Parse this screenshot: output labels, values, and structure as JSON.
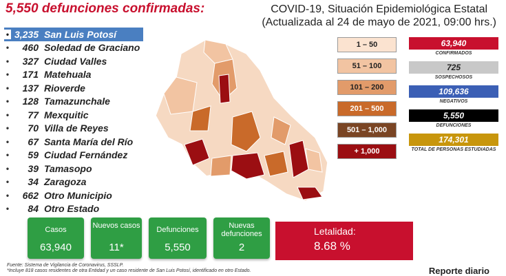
{
  "header": {
    "deaths_title": "5,550 defunciones confirmadas:",
    "title_line1": "COVID-19, Situación Epidemiológica Estatal",
    "title_line2": "(Actualizada al 24 de mayo de 2021, 09:00 hrs.)"
  },
  "municipalities": [
    {
      "value": "3,235",
      "name": "San Luis Potosí"
    },
    {
      "value": "460",
      "name": "Soledad de Graciano"
    },
    {
      "value": "327",
      "name": "Ciudad Valles"
    },
    {
      "value": "171",
      "name": "Matehuala"
    },
    {
      "value": "137",
      "name": "Rioverde"
    },
    {
      "value": "128",
      "name": "Tamazunchale"
    },
    {
      "value": "77",
      "name": "Mexquitic"
    },
    {
      "value": "70",
      "name": "Villa de Reyes"
    },
    {
      "value": "67",
      "name": "Santa María del Río"
    },
    {
      "value": "59",
      "name": "Ciudad Fernández"
    },
    {
      "value": "39",
      "name": "Tamasopo"
    },
    {
      "value": "34",
      "name": "Zaragoza"
    },
    {
      "value": "662",
      "name": "Otro Municipio"
    },
    {
      "value": "84",
      "name": "Otro Estado"
    }
  ],
  "legend": [
    {
      "label": "1 – 50",
      "color": "#fbe3d0"
    },
    {
      "label": "51 – 100",
      "color": "#f2c4a2"
    },
    {
      "label": "101 – 200",
      "color": "#e29b6a"
    },
    {
      "label": "201 – 500",
      "color": "#c96a2a"
    },
    {
      "label": "501 – 1,000",
      "color": "#7a4524"
    },
    {
      "label": "+ 1,000",
      "color": "#9b0e12"
    }
  ],
  "stats": [
    {
      "value": "63,940",
      "label": "CONFIRMADOS",
      "color": "#c8102e",
      "text_color": "#ffffff"
    },
    {
      "value": "725",
      "label": "SOSPECHOSOS",
      "color": "#c8c8c8",
      "text_color": "#222222"
    },
    {
      "value": "109,636",
      "label": "NEGATIVOS",
      "color": "#3b5fb5",
      "text_color": "#ffffff"
    },
    {
      "value": "5,550",
      "label": "DEFUNCIONES",
      "color": "#000000",
      "text_color": "#ffffff"
    },
    {
      "value": "174,301",
      "label": "TOTAL DE PERSONAS ESTUDIADAS",
      "color": "#c8960c",
      "text_color": "#ffffff"
    }
  ],
  "cards": [
    {
      "heading": "Casos",
      "value": "63,940"
    },
    {
      "heading": "Nuevos casos",
      "value": "11*"
    },
    {
      "heading": "Defunciones",
      "value": "5,550"
    },
    {
      "heading": "Nuevas defunciones",
      "value": "2"
    }
  ],
  "letalidad": {
    "heading": "Letalidad:",
    "value": "8.68 %"
  },
  "footer": {
    "source": "Fuente: Sistema de Vigilancia de Coronavirus, SSSLP.",
    "note": "*Incluye 818 casos residentes de otra Entidad y un caso residente de San Luis Potosí, identificado en otro Estado.",
    "report": "Reporte diario"
  },
  "colors": {
    "accent_red": "#c8102e",
    "card_green": "#2f9e44",
    "highlight_blue": "#4a7fc1"
  }
}
